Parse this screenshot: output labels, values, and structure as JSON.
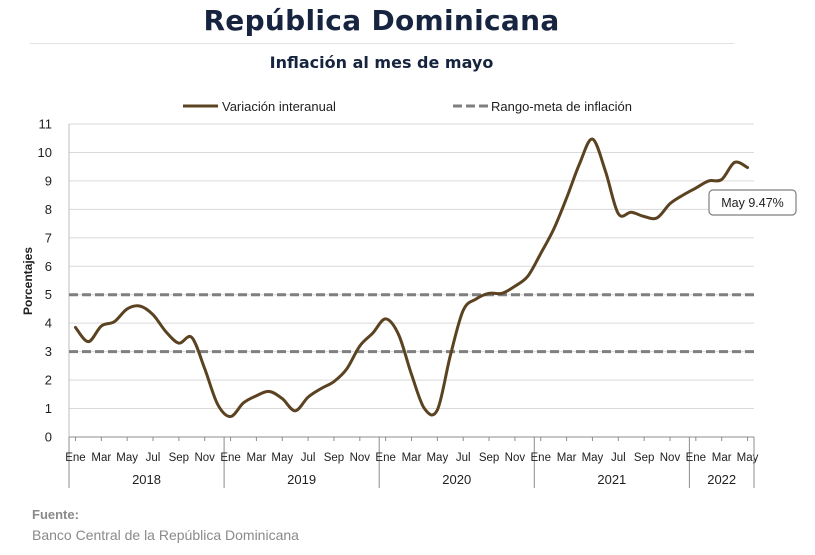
{
  "header": {
    "title": "República Dominicana",
    "subtitle": "Inflación al mes de mayo"
  },
  "source": {
    "label": "Fuente:",
    "text": "Banco Central de la República Dominicana"
  },
  "colors": {
    "series": "#5b4322",
    "target": "#7f7f7f",
    "grid": "#d9d9d9",
    "title": "#16243f"
  },
  "chart_data": {
    "type": "line",
    "title": "Inflación al mes de mayo",
    "ylabel": "Porcentajes",
    "xlabel": "",
    "ylim": [
      0,
      11
    ],
    "yticks": [
      0,
      1,
      2,
      3,
      4,
      5,
      6,
      7,
      8,
      9,
      10,
      11
    ],
    "grid": true,
    "legend_position": "top",
    "legend": [
      "Variación interanual",
      "Rango-meta de inflación"
    ],
    "x": [
      "2018-01",
      "2018-02",
      "2018-03",
      "2018-04",
      "2018-05",
      "2018-06",
      "2018-07",
      "2018-08",
      "2018-09",
      "2018-10",
      "2018-11",
      "2018-12",
      "2019-01",
      "2019-02",
      "2019-03",
      "2019-04",
      "2019-05",
      "2019-06",
      "2019-07",
      "2019-08",
      "2019-09",
      "2019-10",
      "2019-11",
      "2019-12",
      "2020-01",
      "2020-02",
      "2020-03",
      "2020-04",
      "2020-05",
      "2020-06",
      "2020-07",
      "2020-08",
      "2020-09",
      "2020-10",
      "2020-11",
      "2020-12",
      "2021-01",
      "2021-02",
      "2021-03",
      "2021-04",
      "2021-05",
      "2021-06",
      "2021-07",
      "2021-08",
      "2021-09",
      "2021-10",
      "2021-11",
      "2021-12",
      "2022-01",
      "2022-02",
      "2022-03",
      "2022-04",
      "2022-05"
    ],
    "series": [
      {
        "name": "Variación interanual",
        "values": [
          3.85,
          3.35,
          3.9,
          4.05,
          4.5,
          4.6,
          4.3,
          3.7,
          3.3,
          3.5,
          2.4,
          1.15,
          0.72,
          1.2,
          1.45,
          1.6,
          1.35,
          0.92,
          1.4,
          1.7,
          1.95,
          2.4,
          3.2,
          3.65,
          4.15,
          3.6,
          2.2,
          1.0,
          0.95,
          2.85,
          4.45,
          4.85,
          5.05,
          5.05,
          5.3,
          5.65,
          6.45,
          7.3,
          8.4,
          9.6,
          10.47,
          9.35,
          7.85,
          7.9,
          7.75,
          7.7,
          8.2,
          8.5,
          8.75,
          9.0,
          9.05,
          9.65,
          9.47
        ]
      }
    ],
    "target_range": {
      "name": "Rango-meta de inflación",
      "lower": 3,
      "upper": 5
    },
    "month_ticks": [
      [
        "Ene",
        "Mar",
        "May",
        "Jul",
        "Sep",
        "Nov"
      ],
      [
        "Ene",
        "Mar",
        "May",
        "Jul",
        "Sep",
        "Nov"
      ],
      [
        "Ene",
        "Mar",
        "May",
        "Jul",
        "Sep",
        "Nov"
      ],
      [
        "Ene",
        "Mar",
        "May",
        "Jul",
        "Sep",
        "Nov"
      ],
      [
        "Ene",
        "Mar",
        "May"
      ]
    ],
    "years": [
      "2018",
      "2019",
      "2020",
      "2021",
      "2022"
    ],
    "annotation": {
      "text": "May 9.47%",
      "x": "2022-05",
      "y": 9.47
    }
  }
}
